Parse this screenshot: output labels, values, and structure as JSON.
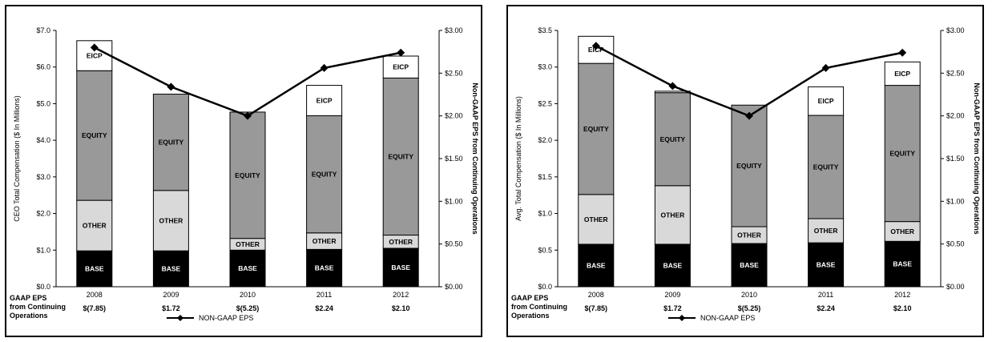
{
  "colors": {
    "base": "#000000",
    "other": "#d9d9d9",
    "equity": "#999999",
    "eicp": "#ffffff",
    "line": "#000000"
  },
  "chart_data": [
    {
      "type": "bar",
      "stacked": true,
      "categories": [
        "2008",
        "2009",
        "2010",
        "2011",
        "2012"
      ],
      "ylabel": "CEO Total Compensation ($ In Millions)",
      "y2label": "Non-GAAP EPS from Continuing Operations",
      "ylim": [
        0,
        7
      ],
      "yticks": [
        0,
        1,
        2,
        3,
        4,
        5,
        6,
        7
      ],
      "ytick_labels": [
        "$0.0",
        "$1.0",
        "$2.0",
        "$3.0",
        "$4.0",
        "$5.0",
        "$6.0",
        "$7.0"
      ],
      "y2lim": [
        0,
        3
      ],
      "y2ticks": [
        0,
        0.5,
        1,
        1.5,
        2,
        2.5,
        3
      ],
      "y2tick_labels": [
        "$0.00",
        "$0.50",
        "$1.00",
        "$1.50",
        "$2.00",
        "$2.50",
        "$3.00"
      ],
      "series": [
        {
          "name": "BASE",
          "values": [
            0.98,
            0.98,
            1.0,
            1.02,
            1.05
          ]
        },
        {
          "name": "OTHER",
          "values": [
            1.38,
            1.65,
            0.32,
            0.45,
            0.36
          ]
        },
        {
          "name": "EQUITY",
          "values": [
            3.54,
            2.63,
            3.45,
            3.2,
            4.29
          ]
        },
        {
          "name": "EICP",
          "values": [
            0.82,
            0.0,
            0.0,
            0.83,
            0.6
          ]
        }
      ],
      "line_series": {
        "name": "NON-GAAP EPS",
        "values": [
          2.8,
          2.34,
          2.0,
          2.56,
          2.74
        ]
      },
      "gaap_eps": {
        "label": "GAAP EPS from Continuing Operations",
        "values": [
          "$(7.85)",
          "$1.72",
          "$(5.25)",
          "$2.24",
          "$2.10"
        ]
      },
      "legend": {
        "position": "bottom",
        "label": "NON-GAAP EPS"
      }
    },
    {
      "type": "bar",
      "stacked": true,
      "categories": [
        "2008",
        "2009",
        "2010",
        "2011",
        "2012"
      ],
      "ylabel": "Avg. Total Compensation ($ In Millions)",
      "y2label": "Non-GAAP EPS from Continuing Operations",
      "ylim": [
        0,
        3.5
      ],
      "yticks": [
        0,
        0.5,
        1,
        1.5,
        2,
        2.5,
        3,
        3.5
      ],
      "ytick_labels": [
        "$0.0",
        "$0.5",
        "$1.0",
        "$1.5",
        "$2.0",
        "$2.5",
        "$3.0",
        "$3.5"
      ],
      "y2lim": [
        0,
        3
      ],
      "y2ticks": [
        0,
        0.5,
        1,
        1.5,
        2,
        2.5,
        3
      ],
      "y2tick_labels": [
        "$0.00",
        "$0.50",
        "$1.00",
        "$1.50",
        "$2.00",
        "$2.50",
        "$3.00"
      ],
      "series": [
        {
          "name": "BASE",
          "values": [
            0.58,
            0.58,
            0.59,
            0.6,
            0.62
          ]
        },
        {
          "name": "OTHER",
          "values": [
            0.68,
            0.8,
            0.23,
            0.33,
            0.27
          ]
        },
        {
          "name": "EQUITY",
          "values": [
            1.79,
            1.27,
            1.66,
            1.41,
            1.86
          ]
        },
        {
          "name": "EICP",
          "values": [
            0.37,
            0.02,
            0.0,
            0.39,
            0.32
          ]
        }
      ],
      "line_series": {
        "name": "NON-GAAP EPS",
        "values": [
          2.82,
          2.35,
          2.0,
          2.56,
          2.74
        ]
      },
      "gaap_eps": {
        "label": "GAAP EPS from Continuing Operations",
        "values": [
          "$(7.85)",
          "$1.72",
          "$(5.25)",
          "$2.24",
          "$2.10"
        ]
      },
      "legend": {
        "position": "bottom",
        "label": "NON-GAAP EPS"
      }
    }
  ]
}
